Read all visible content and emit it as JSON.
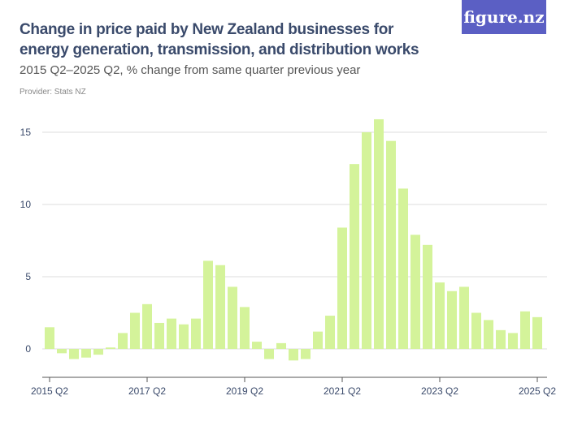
{
  "header": {
    "title": "Change in price paid by New Zealand businesses for energy generation, transmission, and distribution works",
    "subtitle": "2015 Q2–2025 Q2, % change from same quarter previous year",
    "provider": "Provider: Stats NZ",
    "logo": "figure.nz"
  },
  "colors": {
    "bar": "#d4f39a",
    "axis": "#555",
    "grid": "#ddd",
    "logo_bg": "#5b5fc4"
  },
  "chart_data": {
    "type": "bar",
    "title": "Change in price paid by New Zealand businesses for energy generation, transmission, and distribution works",
    "xlabel": "",
    "ylabel": "",
    "categories": [
      "2015 Q2",
      "2015 Q3",
      "2015 Q4",
      "2016 Q1",
      "2016 Q2",
      "2016 Q3",
      "2016 Q4",
      "2017 Q1",
      "2017 Q2",
      "2017 Q3",
      "2017 Q4",
      "2018 Q1",
      "2018 Q2",
      "2018 Q3",
      "2018 Q4",
      "2019 Q1",
      "2019 Q2",
      "2019 Q3",
      "2019 Q4",
      "2020 Q1",
      "2020 Q2",
      "2020 Q3",
      "2020 Q4",
      "2021 Q1",
      "2021 Q2",
      "2021 Q3",
      "2021 Q4",
      "2022 Q1",
      "2022 Q2",
      "2022 Q3",
      "2022 Q4",
      "2023 Q1",
      "2023 Q2",
      "2023 Q3",
      "2023 Q4",
      "2024 Q1",
      "2024 Q2",
      "2024 Q3",
      "2024 Q4",
      "2025 Q1",
      "2025 Q2"
    ],
    "values": [
      1.5,
      -0.3,
      -0.7,
      -0.6,
      -0.4,
      0.1,
      1.1,
      2.5,
      3.1,
      1.8,
      2.1,
      1.7,
      2.1,
      6.1,
      5.8,
      4.3,
      2.9,
      0.5,
      -0.7,
      0.4,
      -0.8,
      -0.7,
      1.2,
      2.3,
      8.4,
      12.8,
      15.0,
      15.9,
      14.4,
      11.1,
      7.9,
      7.2,
      4.6,
      4.0,
      4.3,
      2.5,
      2.0,
      1.3,
      1.1,
      2.6,
      2.2
    ],
    "x_tick_labels": [
      "2015 Q2",
      "2017 Q2",
      "2019 Q2",
      "2021 Q2",
      "2023 Q2",
      "2025 Q2"
    ],
    "y_ticks": [
      0,
      5,
      10,
      15
    ],
    "ylim": [
      -2,
      16
    ],
    "grid": true
  }
}
